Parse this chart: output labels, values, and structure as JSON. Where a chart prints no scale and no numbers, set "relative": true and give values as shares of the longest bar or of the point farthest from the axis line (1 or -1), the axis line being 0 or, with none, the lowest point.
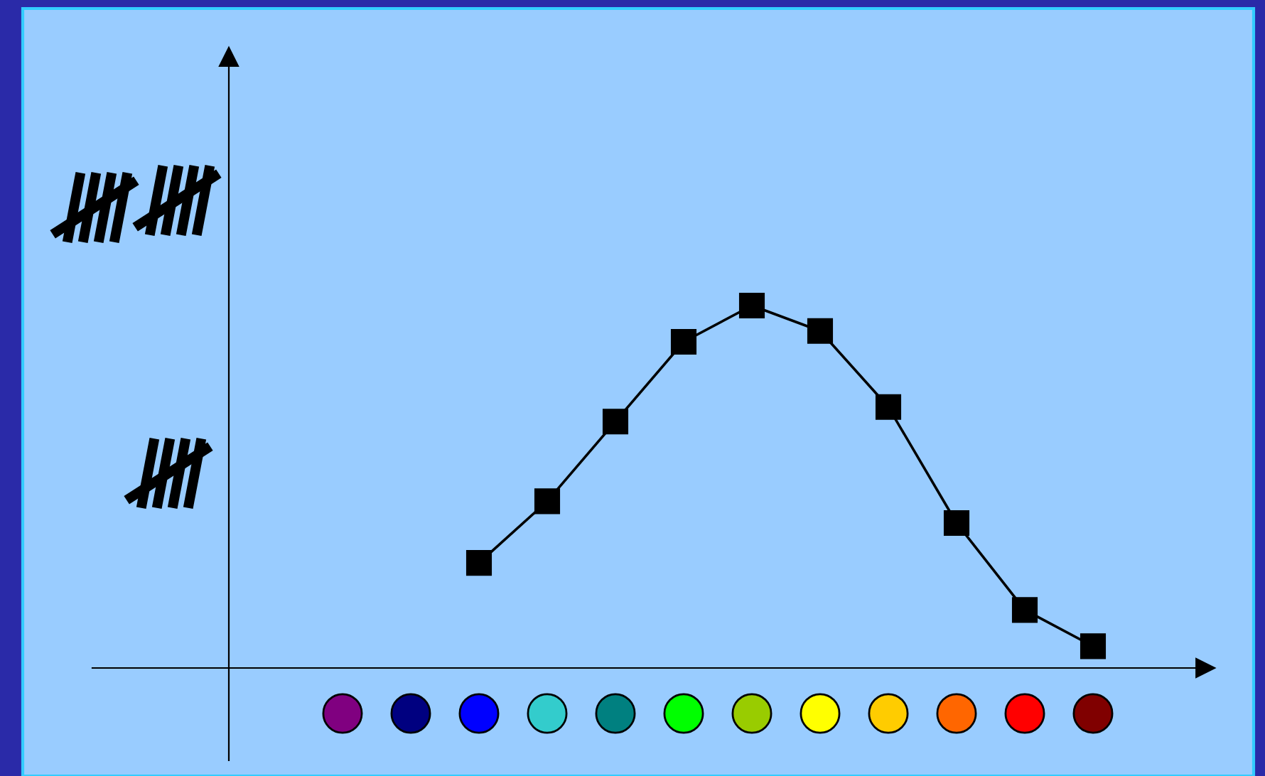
{
  "chart_data": {
    "type": "line",
    "relative": true,
    "marker": "square",
    "line_style": "solid",
    "categories": [
      null,
      null,
      null,
      null,
      null,
      null,
      null,
      null,
      null,
      null,
      null,
      null
    ],
    "series": [
      {
        "color": "#000000",
        "values": [
          null,
          null,
          0.29,
          0.46,
          0.68,
          0.9,
          1,
          0.93,
          0.72,
          0.4,
          0.16,
          0.06
        ]
      }
    ]
  }
}
